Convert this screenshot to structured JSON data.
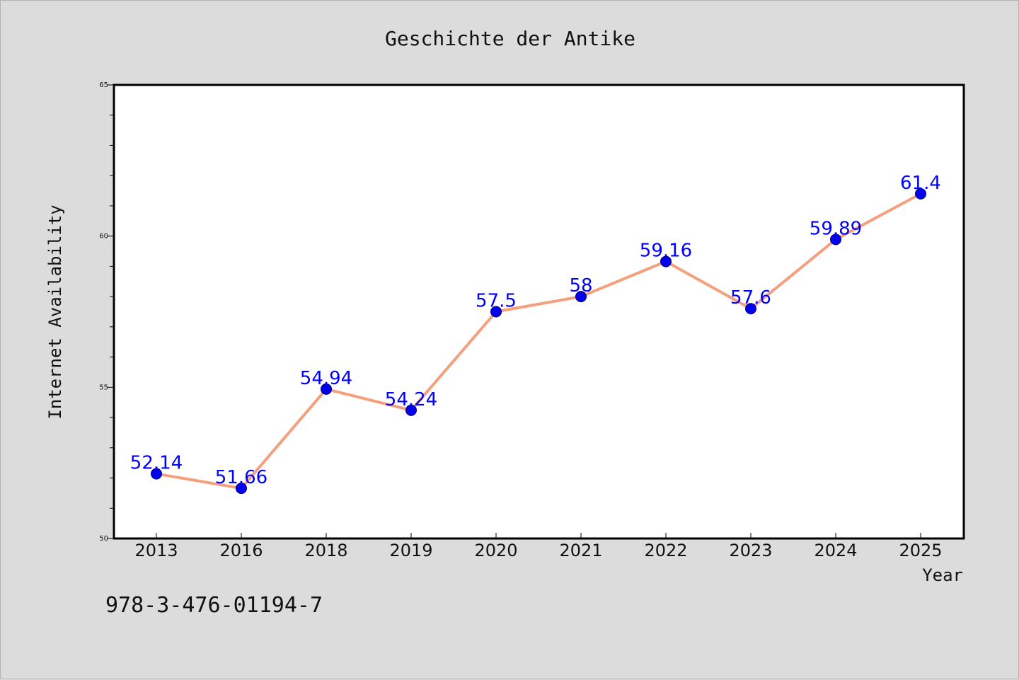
{
  "chart_data": {
    "type": "line",
    "title": "Geschichte der Antike",
    "xlabel": "Year",
    "ylabel": "Internet Availability",
    "categories": [
      "2013",
      "2016",
      "2018",
      "2019",
      "2020",
      "2021",
      "2022",
      "2023",
      "2024",
      "2025"
    ],
    "series": [
      {
        "values": [
          52.14,
          51.66,
          54.94,
          54.24,
          57.5,
          58,
          59.16,
          57.6,
          59.89,
          61.4
        ],
        "labels": [
          "52.14",
          "51.66",
          "54.94",
          "54.24",
          "57.5",
          "58",
          "59.16",
          "57.6",
          "59.89",
          "61.4"
        ],
        "line_color": "#f4a07e",
        "marker_color": "#0000ee"
      }
    ],
    "ylim": [
      50,
      65
    ],
    "yticks": [
      "50",
      "55",
      "60",
      "65"
    ],
    "grid": false,
    "legend": "none"
  },
  "footer": {
    "isbn": "978-3-476-01194-7"
  }
}
